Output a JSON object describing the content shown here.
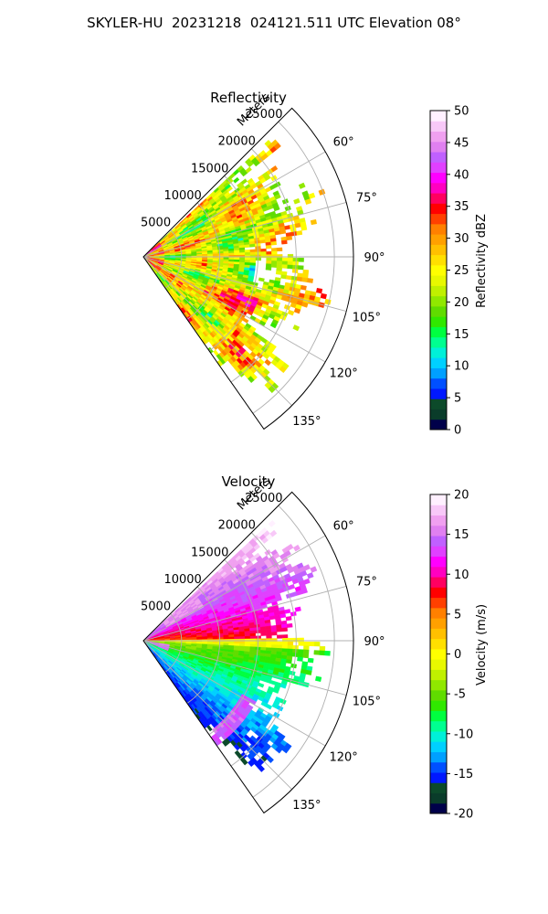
{
  "suptitle": "SKYLER-HU  20231218  024121.511 UTC Elevation 08°",
  "chart_data": [
    {
      "type": "heatmap",
      "projection": "polar-sector",
      "title": "Reflectivity",
      "radial_axis_label": "Meters",
      "radial_ticks": [
        "5000",
        "10000",
        "15000",
        "20000",
        "25000"
      ],
      "radial_tick_values": [
        5000,
        10000,
        15000,
        20000,
        25000
      ],
      "rlim": [
        0,
        27500
      ],
      "azimuth_range_deg": [
        45,
        145
      ],
      "azimuth_ticks": [
        "60°",
        "75°",
        "90°",
        "105°",
        "120°",
        "135°"
      ],
      "azimuth_tick_values": [
        60,
        75,
        90,
        105,
        120,
        135
      ],
      "grid": true,
      "colorbar": {
        "label": "Reflectivity dBZ",
        "vmin": 0,
        "vmax": 50,
        "ticks": [
          "0",
          "5",
          "10",
          "15",
          "20",
          "25",
          "30",
          "35",
          "40",
          "45",
          "50"
        ],
        "tick_values": [
          0,
          5,
          10,
          15,
          20,
          25,
          30,
          35,
          40,
          45,
          50
        ],
        "placement": "right"
      },
      "data_extent": {
        "azimuth_deg": [
          47,
          145
        ],
        "typical_max_range_m": 23000
      },
      "dominant_range_dbz": [
        20,
        35
      ]
    },
    {
      "type": "heatmap",
      "projection": "polar-sector",
      "title": "Velocity",
      "radial_axis_label": "Meters",
      "radial_ticks": [
        "5000",
        "10000",
        "15000",
        "20000",
        "25000"
      ],
      "radial_tick_values": [
        5000,
        10000,
        15000,
        20000,
        25000
      ],
      "rlim": [
        0,
        27500
      ],
      "azimuth_range_deg": [
        45,
        145
      ],
      "azimuth_ticks": [
        "60°",
        "75°",
        "90°",
        "105°",
        "120°",
        "135°"
      ],
      "azimuth_tick_values": [
        60,
        75,
        90,
        105,
        120,
        135
      ],
      "grid": true,
      "colorbar": {
        "label": "Velocity (m/s)",
        "vmin": -20,
        "vmax": 20,
        "ticks": [
          "-20",
          "-15",
          "-10",
          "-5",
          "0",
          "5",
          "10",
          "15",
          "20"
        ],
        "tick_values": [
          -20,
          -15,
          -10,
          -5,
          0,
          5,
          10,
          15,
          20
        ],
        "placement": "right"
      },
      "data_extent": {
        "azimuth_deg": [
          47,
          145
        ],
        "typical_max_range_m": 23000
      },
      "pattern": "positive (+8 to +12 m/s) north of ~85°, near zero around 85–92°, negative (-5 to -12 m/s) south of ~95°"
    }
  ],
  "colors": {
    "reflectivity_cmap": [
      "#00004a",
      "#0a3c2a",
      "#0c4a2a",
      "#0018ff",
      "#0050ff",
      "#00a0ff",
      "#00d0ff",
      "#00f0d8",
      "#00ff90",
      "#00ff40",
      "#30e800",
      "#60dc00",
      "#90e800",
      "#c0f000",
      "#e8f800",
      "#ffff00",
      "#ffe000",
      "#ffc000",
      "#ffa000",
      "#ff8000",
      "#ff4000",
      "#ff0000",
      "#ff0060",
      "#ff00c0",
      "#ff00ff",
      "#e040ff",
      "#c060ff",
      "#e080f0",
      "#f0a0f0",
      "#f8c8f8",
      "#fff0ff"
    ],
    "velocity_cmap": [
      "#00004a",
      "#0a3c2a",
      "#0c4a2a",
      "#0018ff",
      "#0050ff",
      "#00a0ff",
      "#00d0ff",
      "#00f0d8",
      "#00ff90",
      "#00ff40",
      "#30e800",
      "#60dc00",
      "#90e800",
      "#c0f000",
      "#e8f800",
      "#ffff00",
      "#ffe000",
      "#ffc000",
      "#ffa000",
      "#ff8000",
      "#ff4000",
      "#ff0000",
      "#ff0060",
      "#ff00c0",
      "#ff00ff",
      "#e040ff",
      "#c060ff",
      "#e080f0",
      "#f0a0f0",
      "#f8c8f8",
      "#fff0ff"
    ],
    "grid": "#b0b0b0",
    "spine": "#000000"
  }
}
